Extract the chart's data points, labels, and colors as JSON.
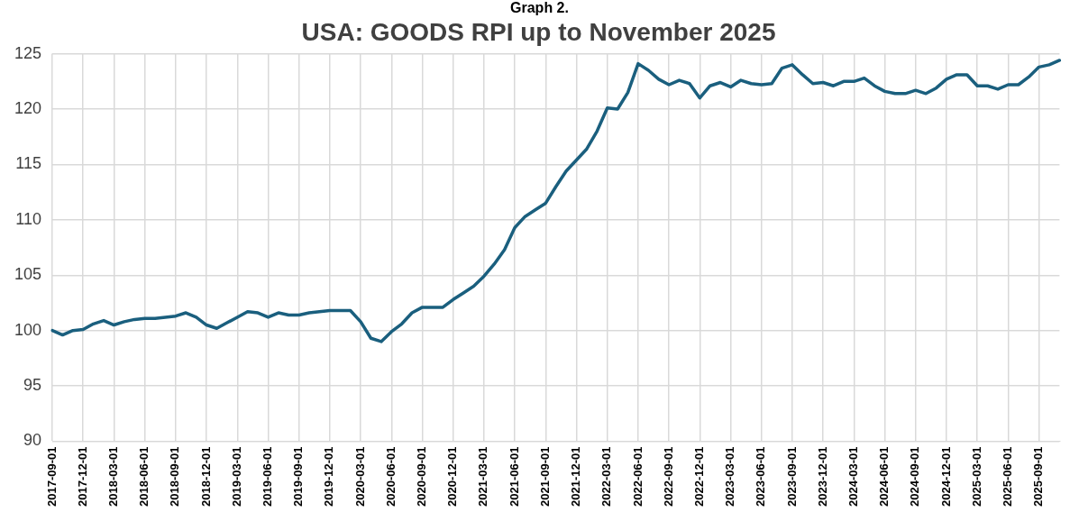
{
  "chart_data": {
    "type": "line",
    "title": "USA: GOODS RPI up to November 2025",
    "annotations": [
      "Graph 2."
    ],
    "categories": [
      "2017-09-01",
      null,
      null,
      "2017-12-01",
      null,
      null,
      "2018-03-01",
      null,
      null,
      "2018-06-01",
      null,
      null,
      "2018-09-01",
      null,
      null,
      "2018-12-01",
      null,
      null,
      "2019-03-01",
      null,
      null,
      "2019-06-01",
      null,
      null,
      "2019-09-01",
      null,
      null,
      "2019-12-01",
      null,
      null,
      "2020-03-01",
      null,
      null,
      "2020-06-01",
      null,
      null,
      "2020-09-01",
      null,
      null,
      "2020-12-01",
      null,
      null,
      "2021-03-01",
      null,
      null,
      "2021-06-01",
      null,
      null,
      "2021-09-01",
      null,
      null,
      "2021-12-01",
      null,
      null,
      "2022-03-01",
      null,
      null,
      "2022-06-01",
      null,
      null,
      "2022-09-01",
      null,
      null,
      "2022-12-01",
      null,
      null,
      "2023-03-01",
      null,
      null,
      "2023-06-01",
      null,
      null,
      "2023-09-01",
      null,
      null,
      "2023-12-01",
      null,
      null,
      "2024-03-01",
      null,
      null,
      "2024-06-01",
      null,
      null,
      "2024-09-01",
      null,
      null,
      "2024-12-01",
      null,
      null,
      "2025-03-01",
      null,
      null,
      "2025-06-01",
      null,
      null,
      "2025-09-01",
      null,
      null
    ],
    "series": [
      {
        "color": "#1a5f7e",
        "values": [
          100.0,
          99.6,
          100.0,
          100.1,
          100.6,
          100.9,
          100.5,
          100.8,
          101.0,
          101.1,
          101.1,
          101.2,
          101.3,
          101.6,
          101.2,
          100.5,
          100.2,
          100.7,
          101.2,
          101.7,
          101.6,
          101.2,
          101.6,
          101.4,
          101.4,
          101.6,
          101.7,
          101.8,
          101.8,
          101.8,
          100.8,
          99.3,
          99.0,
          99.9,
          100.6,
          101.6,
          102.1,
          102.1,
          102.1,
          102.8,
          103.4,
          104.0,
          104.9,
          106.0,
          107.3,
          109.3,
          110.3,
          110.9,
          111.5,
          113.0,
          114.4,
          115.4,
          116.4,
          118.0,
          120.1,
          120.0,
          121.5,
          124.1,
          123.5,
          122.7,
          122.2,
          122.6,
          122.3,
          121.0,
          122.1,
          122.4,
          122.0,
          122.6,
          122.3,
          122.2,
          122.3,
          123.7,
          124.0,
          123.1,
          122.3,
          122.4,
          122.1,
          122.5,
          122.5,
          122.8,
          122.1,
          121.6,
          121.4,
          121.4,
          121.7,
          121.4,
          121.9,
          122.7,
          123.1,
          123.1,
          122.1,
          122.1,
          121.8,
          122.2,
          122.2,
          122.9,
          123.8,
          124.0,
          124.4
        ]
      }
    ],
    "ylim": [
      90,
      125
    ],
    "yticks": [
      90,
      95,
      100,
      105,
      110,
      115,
      120,
      125
    ],
    "grid": true,
    "legend": false,
    "marker": "none",
    "line_style": "solid"
  }
}
